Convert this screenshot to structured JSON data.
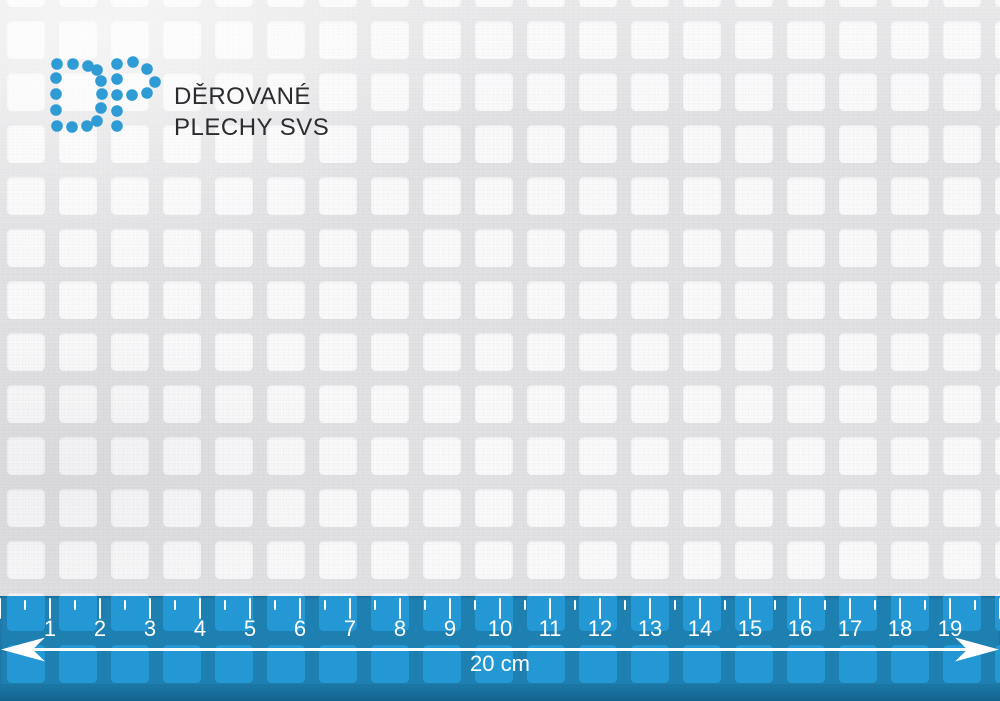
{
  "brand": {
    "line1": "DĚROVANÉ",
    "line2": "PLECHY SVS",
    "text_color": "#2B2C2E",
    "dot_color": "#2E9BD4"
  },
  "sheet": {
    "metal_color": "#E3E3E5",
    "hole_color": "#FCFCFD"
  },
  "ruler": {
    "cm_labels": [
      "1",
      "2",
      "3",
      "4",
      "5",
      "6",
      "7",
      "8",
      "9",
      "10",
      "11",
      "12",
      "13",
      "14",
      "15",
      "16",
      "17",
      "18",
      "19"
    ],
    "total_label": "20 cm",
    "web_color": "#1E7FB1",
    "hole_color": "#2498D5",
    "edge_top_color": "#1B79A7",
    "edge_bottom_color": "#15638E",
    "mark_color": "#FFFFFF"
  }
}
